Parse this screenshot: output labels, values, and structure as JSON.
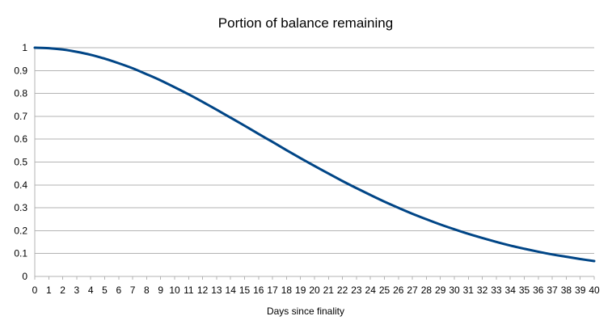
{
  "chart_data": {
    "type": "line",
    "title": "Portion of balance remaining",
    "xlabel": "Days since finality",
    "ylabel": "",
    "xlim": [
      0,
      40
    ],
    "ylim": [
      0,
      1
    ],
    "x_ticks": [
      0,
      1,
      2,
      3,
      4,
      5,
      6,
      7,
      8,
      9,
      10,
      11,
      12,
      13,
      14,
      15,
      16,
      17,
      18,
      19,
      20,
      21,
      22,
      23,
      24,
      25,
      26,
      27,
      28,
      29,
      30,
      31,
      32,
      33,
      34,
      35,
      36,
      37,
      38,
      39,
      40
    ],
    "y_ticks": [
      "0",
      "0.1",
      "0.2",
      "0.3",
      "0.4",
      "0.5",
      "0.6",
      "0.7",
      "0.8",
      "0.9",
      "1"
    ],
    "grid": true,
    "legend": "none",
    "colors": {
      "line": "#004586",
      "grid": "#b3b3b3"
    },
    "series": [
      {
        "x": [
          0,
          1,
          2,
          3,
          4,
          5,
          6,
          7,
          8,
          9,
          10,
          11,
          12,
          13,
          14,
          15,
          16,
          17,
          18,
          19,
          20,
          21,
          22,
          23,
          24,
          25,
          26,
          27,
          28,
          29,
          30,
          31,
          32,
          33,
          34,
          35,
          36,
          37,
          38,
          39,
          40
        ],
        "values": [
          1.0,
          0.998,
          0.992,
          0.982,
          0.969,
          0.952,
          0.932,
          0.91,
          0.884,
          0.857,
          0.827,
          0.796,
          0.763,
          0.729,
          0.694,
          0.659,
          0.623,
          0.588,
          0.552,
          0.517,
          0.483,
          0.45,
          0.417,
          0.386,
          0.356,
          0.327,
          0.3,
          0.274,
          0.25,
          0.227,
          0.206,
          0.186,
          0.168,
          0.151,
          0.135,
          0.121,
          0.108,
          0.096,
          0.086,
          0.076,
          0.067
        ]
      }
    ]
  }
}
